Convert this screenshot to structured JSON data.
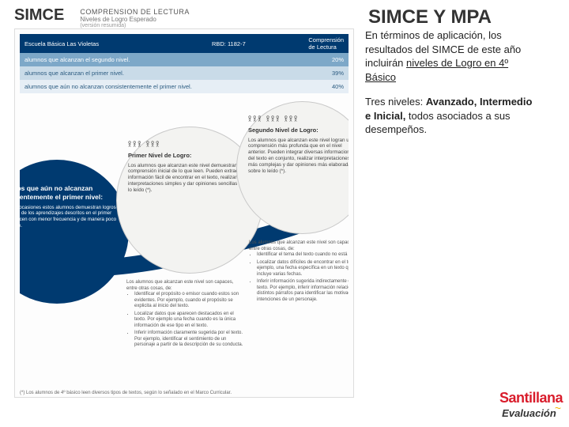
{
  "header": {
    "left_title": "SIMCE",
    "mini": {
      "line1": "COMPRENSION DE LECTURA",
      "line2": "Niveles de Logro Esperado",
      "line3": "(versión resumida)"
    },
    "right_title": "SIMCE Y MPA"
  },
  "table": {
    "school": "Escuela Básica Las Violetas",
    "rbd": "RBD: 1182-7",
    "subject": "Comprensión de Lectura",
    "rows": [
      {
        "label": "alumnos que alcanzan el segundo nivel.",
        "pct": "20%"
      },
      {
        "label": "alumnos que alcanzan el primer nivel.",
        "pct": "39%"
      },
      {
        "label": "alumnos que aún no alcanzan consistentemente el primer nivel.",
        "pct": "40%"
      }
    ]
  },
  "circles": {
    "left": {
      "icons": "𖨆 𖨆 𖨆",
      "title": "Alumnos que aún no alcanzan consistentemente el primer nivel:",
      "body": "Si bien en ocasiones estos alumnos demuestran logros en algunos de los aprendizajes descritos en el primer nivel, lo hacen con menor frecuencia y de manera poco consistente."
    },
    "mid": {
      "icons": "𖨆𖨆𖨆  𖨆𖨆𖨆",
      "title": "Primer Nivel de Logro:",
      "body": "Los alumnos que alcanzan este nivel demuestran una comprensión inicial de lo que leen. Pueden extraer información fácil de encontrar en el texto, realizar interpretaciones simples y dar opiniones sencillas sobre lo leído (*)."
    },
    "right": {
      "icons": "𖨆𖨆𖨆 𖨆𖨆𖨆 𖨆𖨆𖨆",
      "title": "Segundo Nivel de Logro:",
      "body": "Los alumnos que alcanzan este nivel logran una comprensión más profunda que en el nivel anterior. Pueden integrar diversas informaciones del texto en conjunto, realizar interpretaciones más complejas y dar opiniones más elaboradas sobre lo leído (*)."
    }
  },
  "below": {
    "mid_intro": "Los alumnos que alcanzan este nivel son capaces, entre otras cosas, de:",
    "mid": [
      "Identificar el propósito o emisor cuando estos son evidentes. Por ejemplo, cuando el propósito se explicita al inicio del texto.",
      "Localizar datos que aparecen destacados en el texto. Por ejemplo una fecha cuando es la única información de ese tipo en el texto.",
      "Inferir información claramente sugerida por el texto. Por ejemplo, identificar el sentimiento de un personaje a partir de la descripción de su conducta."
    ],
    "right_intro": "Los alumnos que alcanzan este nivel son capaces, entre otras cosas, de:",
    "right": [
      "Identificar el tema del texto cuando no está explícito.",
      "Localizar datos difíciles de encontrar en el texto. Por ejemplo, una fecha específica en un texto que incluye varias fechas.",
      "Inferir información sugerida indirectamente en el texto. Por ejemplo, inferir información relacionando distintos párrafos para identificar las motivaciones o intenciones de un personaje."
    ]
  },
  "footnote": "(*) Los alumnos de 4º básico leen diversos tipos de textos, según lo señalado en el Marco Curricular.",
  "sidebar": {
    "p1_a": "En términos de aplicación, los resultados del SIMCE de este año incluirán ",
    "p1_b": "niveles de Logro en 4º Básico",
    "p2_a": "Tres niveles: ",
    "p2_b": "Avanzado, Intermedio e Inicial, ",
    "p2_c": "todos asociados a sus desempeños."
  },
  "logo": {
    "brand": "Santillana",
    "sub": "Evaluación"
  },
  "colors": {
    "navy": "#003a70",
    "red": "#d91c2b",
    "table_row0": "#7da8c8",
    "table_row1": "#c9dbe8",
    "table_row2": "#e6eef5",
    "circle_bg": "#f3f3f1"
  }
}
